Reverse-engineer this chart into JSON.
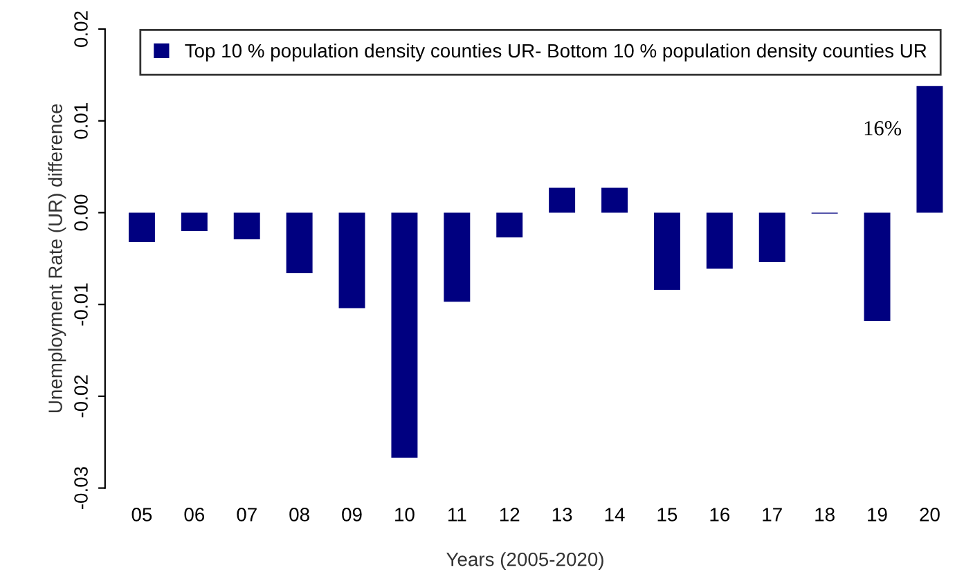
{
  "chart_data": {
    "type": "bar",
    "xlabel": "Years (2005-2020)",
    "ylabel": "Unemployment Rate (UR) difference",
    "categories": [
      "05",
      "06",
      "07",
      "08",
      "09",
      "10",
      "11",
      "12",
      "13",
      "14",
      "15",
      "16",
      "17",
      "18",
      "19",
      "20"
    ],
    "series": [
      {
        "name": "Top 10 % population density counties UR- Bottom 10 % population density counties UR",
        "color": "#000080",
        "values": [
          -0.0032,
          -0.002,
          -0.0029,
          -0.0066,
          -0.0104,
          -0.0267,
          -0.0097,
          -0.0027,
          0.0027,
          0.0027,
          -0.0084,
          -0.0061,
          -0.0054,
          -0.0001,
          -0.0118,
          0.0138
        ]
      }
    ],
    "ylim": [
      -0.03,
      0.02
    ],
    "yticks": [
      {
        "value": -0.03,
        "label": "-0.03"
      },
      {
        "value": -0.02,
        "label": "-0.02"
      },
      {
        "value": -0.01,
        "label": "-0.01"
      },
      {
        "value": 0,
        "label": "0.00"
      },
      {
        "value": 0.01,
        "label": "0.01"
      },
      {
        "value": 0.02,
        "label": "0.02"
      }
    ],
    "annotations": [
      "16%"
    ],
    "legend": "top right",
    "grid": false
  }
}
